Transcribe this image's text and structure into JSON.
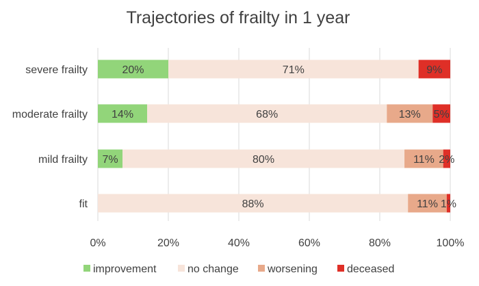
{
  "chart_data": {
    "type": "bar",
    "orientation": "horizontal",
    "stacked": "percent",
    "title": "Trajectories of frailty in 1 year",
    "categories": [
      "severe frailty",
      "moderate frailty",
      "mild frailty",
      "fit"
    ],
    "series": [
      {
        "name": "improvement",
        "color": "#92d57a",
        "values": [
          20,
          14,
          7,
          0
        ],
        "labels": [
          "20%",
          "14%",
          "7%",
          ""
        ]
      },
      {
        "name": "no change",
        "color": "#f7e4da",
        "values": [
          71,
          68,
          80,
          88
        ],
        "labels": [
          "71%",
          "68%",
          "80%",
          "88%"
        ]
      },
      {
        "name": "worsening",
        "color": "#e8a98a",
        "values": [
          0,
          13,
          11,
          11
        ],
        "labels": [
          "",
          "13%",
          "11%",
          "11%"
        ]
      },
      {
        "name": "deceased",
        "color": "#df2f27",
        "values": [
          9,
          5,
          2,
          1
        ],
        "labels": [
          "9%",
          "5%",
          "2%",
          "1%"
        ]
      }
    ],
    "xlim": [
      0,
      100
    ],
    "x_ticks": [
      0,
      20,
      40,
      60,
      80,
      100
    ],
    "x_tick_labels": [
      "0%",
      "20%",
      "40%",
      "60%",
      "80%",
      "100%"
    ],
    "xlabel": "",
    "ylabel": "",
    "grid": "vertical",
    "legend_position": "bottom",
    "gridline_color": "#d9d9d9"
  }
}
